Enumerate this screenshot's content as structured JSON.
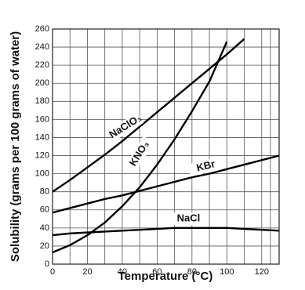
{
  "chart_data": {
    "type": "line",
    "xlabel": "Temperature (°C)",
    "ylabel": "Solubility (grams per 100 grams of water)",
    "x": [
      0,
      10,
      20,
      30,
      40,
      50,
      60,
      70,
      80,
      90,
      100,
      110,
      120,
      130
    ],
    "series": [
      {
        "name": "NaClO₃",
        "color": "#000000",
        "values": [
          80,
          93,
          107,
          121,
          136,
          152,
          168,
          184,
          200,
          216,
          232,
          249,
          null,
          null
        ]
      },
      {
        "name": "KNO₃",
        "color": "#000000",
        "values": [
          13,
          21,
          32,
          46,
          64,
          85,
          110,
          138,
          169,
          202,
          246,
          null,
          null,
          null
        ]
      },
      {
        "name": "KBr",
        "color": "#000000",
        "values": [
          57,
          62,
          67,
          72,
          76,
          81,
          86,
          91,
          96,
          100,
          105,
          110,
          115,
          120
        ]
      },
      {
        "name": "NaCl",
        "color": "#000000",
        "values": [
          32,
          34,
          35,
          36,
          37,
          38,
          39,
          40,
          40,
          40,
          40,
          39,
          38,
          37
        ]
      }
    ],
    "xlim": [
      0,
      130
    ],
    "ylim": [
      0,
      260
    ],
    "xticks": [
      0,
      20,
      40,
      60,
      80,
      100,
      120
    ],
    "yticks": [
      0,
      20,
      40,
      60,
      80,
      100,
      120,
      140,
      160,
      180,
      200,
      220,
      240,
      260
    ],
    "grid": true
  }
}
